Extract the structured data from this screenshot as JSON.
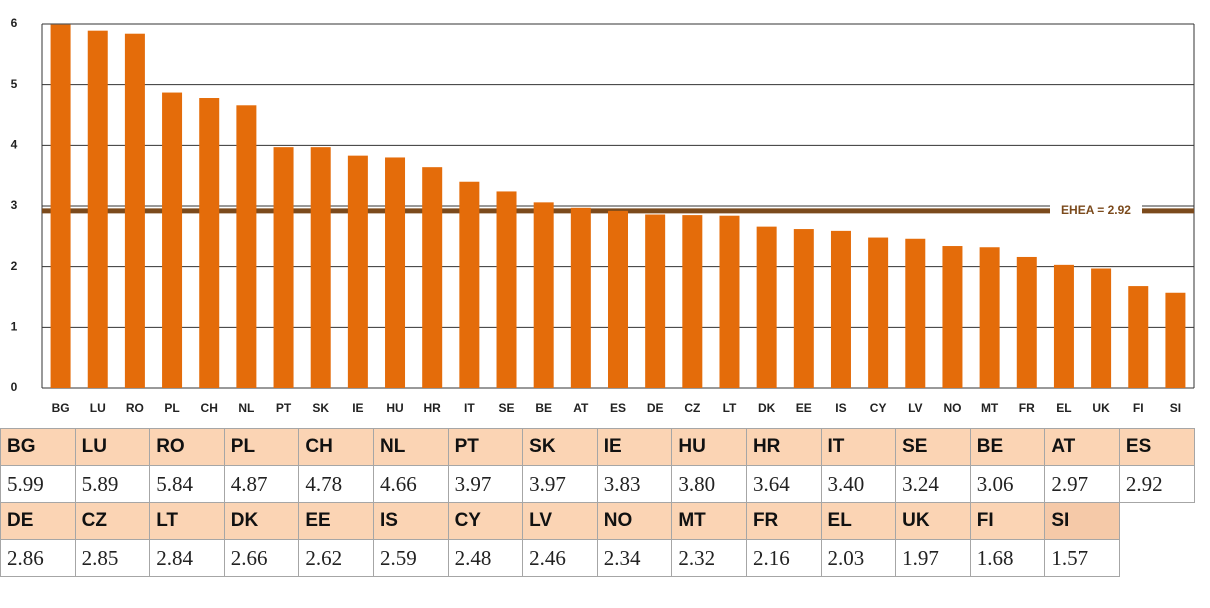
{
  "chart_data": {
    "type": "bar",
    "categories": [
      "BG",
      "LU",
      "RO",
      "PL",
      "CH",
      "NL",
      "PT",
      "SK",
      "IE",
      "HU",
      "HR",
      "IT",
      "SE",
      "BE",
      "AT",
      "ES",
      "DE",
      "CZ",
      "LT",
      "DK",
      "EE",
      "IS",
      "CY",
      "LV",
      "NO",
      "MT",
      "FR",
      "EL",
      "UK",
      "FI",
      "SI"
    ],
    "values": [
      5.99,
      5.89,
      5.84,
      4.87,
      4.78,
      4.66,
      3.97,
      3.97,
      3.83,
      3.8,
      3.64,
      3.4,
      3.24,
      3.06,
      2.97,
      2.92,
      2.86,
      2.85,
      2.84,
      2.66,
      2.62,
      2.59,
      2.48,
      2.46,
      2.34,
      2.32,
      2.16,
      2.03,
      1.97,
      1.68,
      1.57
    ],
    "color": "#e46c0a",
    "ylim": [
      0,
      6
    ],
    "yticks": [
      0,
      1,
      2,
      3,
      4,
      5,
      6
    ],
    "grid": true,
    "reference_line": {
      "value": 2.92,
      "label": "EHEA = 2.92",
      "color": "#7b4a1c"
    }
  },
  "table": {
    "rows": [
      [
        "BG",
        "LU",
        "RO",
        "PL",
        "CH",
        "NL",
        "PT",
        "SK",
        "IE",
        "HU",
        "HR",
        "IT",
        "SE",
        "BE",
        "AT",
        "ES"
      ],
      [
        "5.99",
        "5.89",
        "5.84",
        "4.87",
        "4.78",
        "4.66",
        "3.97",
        "3.97",
        "3.83",
        "3.80",
        "3.64",
        "3.40",
        "3.24",
        "3.06",
        "2.97",
        "2.92"
      ],
      [
        "DE",
        "CZ",
        "LT",
        "DK",
        "EE",
        "IS",
        "CY",
        "LV",
        "NO",
        "MT",
        "FR",
        "EL",
        "UK",
        "FI",
        "SI"
      ],
      [
        "2.86",
        "2.85",
        "2.84",
        "2.66",
        "2.62",
        "2.59",
        "2.48",
        "2.46",
        "2.34",
        "2.32",
        "2.16",
        "2.03",
        "1.97",
        "1.68",
        "1.57"
      ]
    ]
  }
}
